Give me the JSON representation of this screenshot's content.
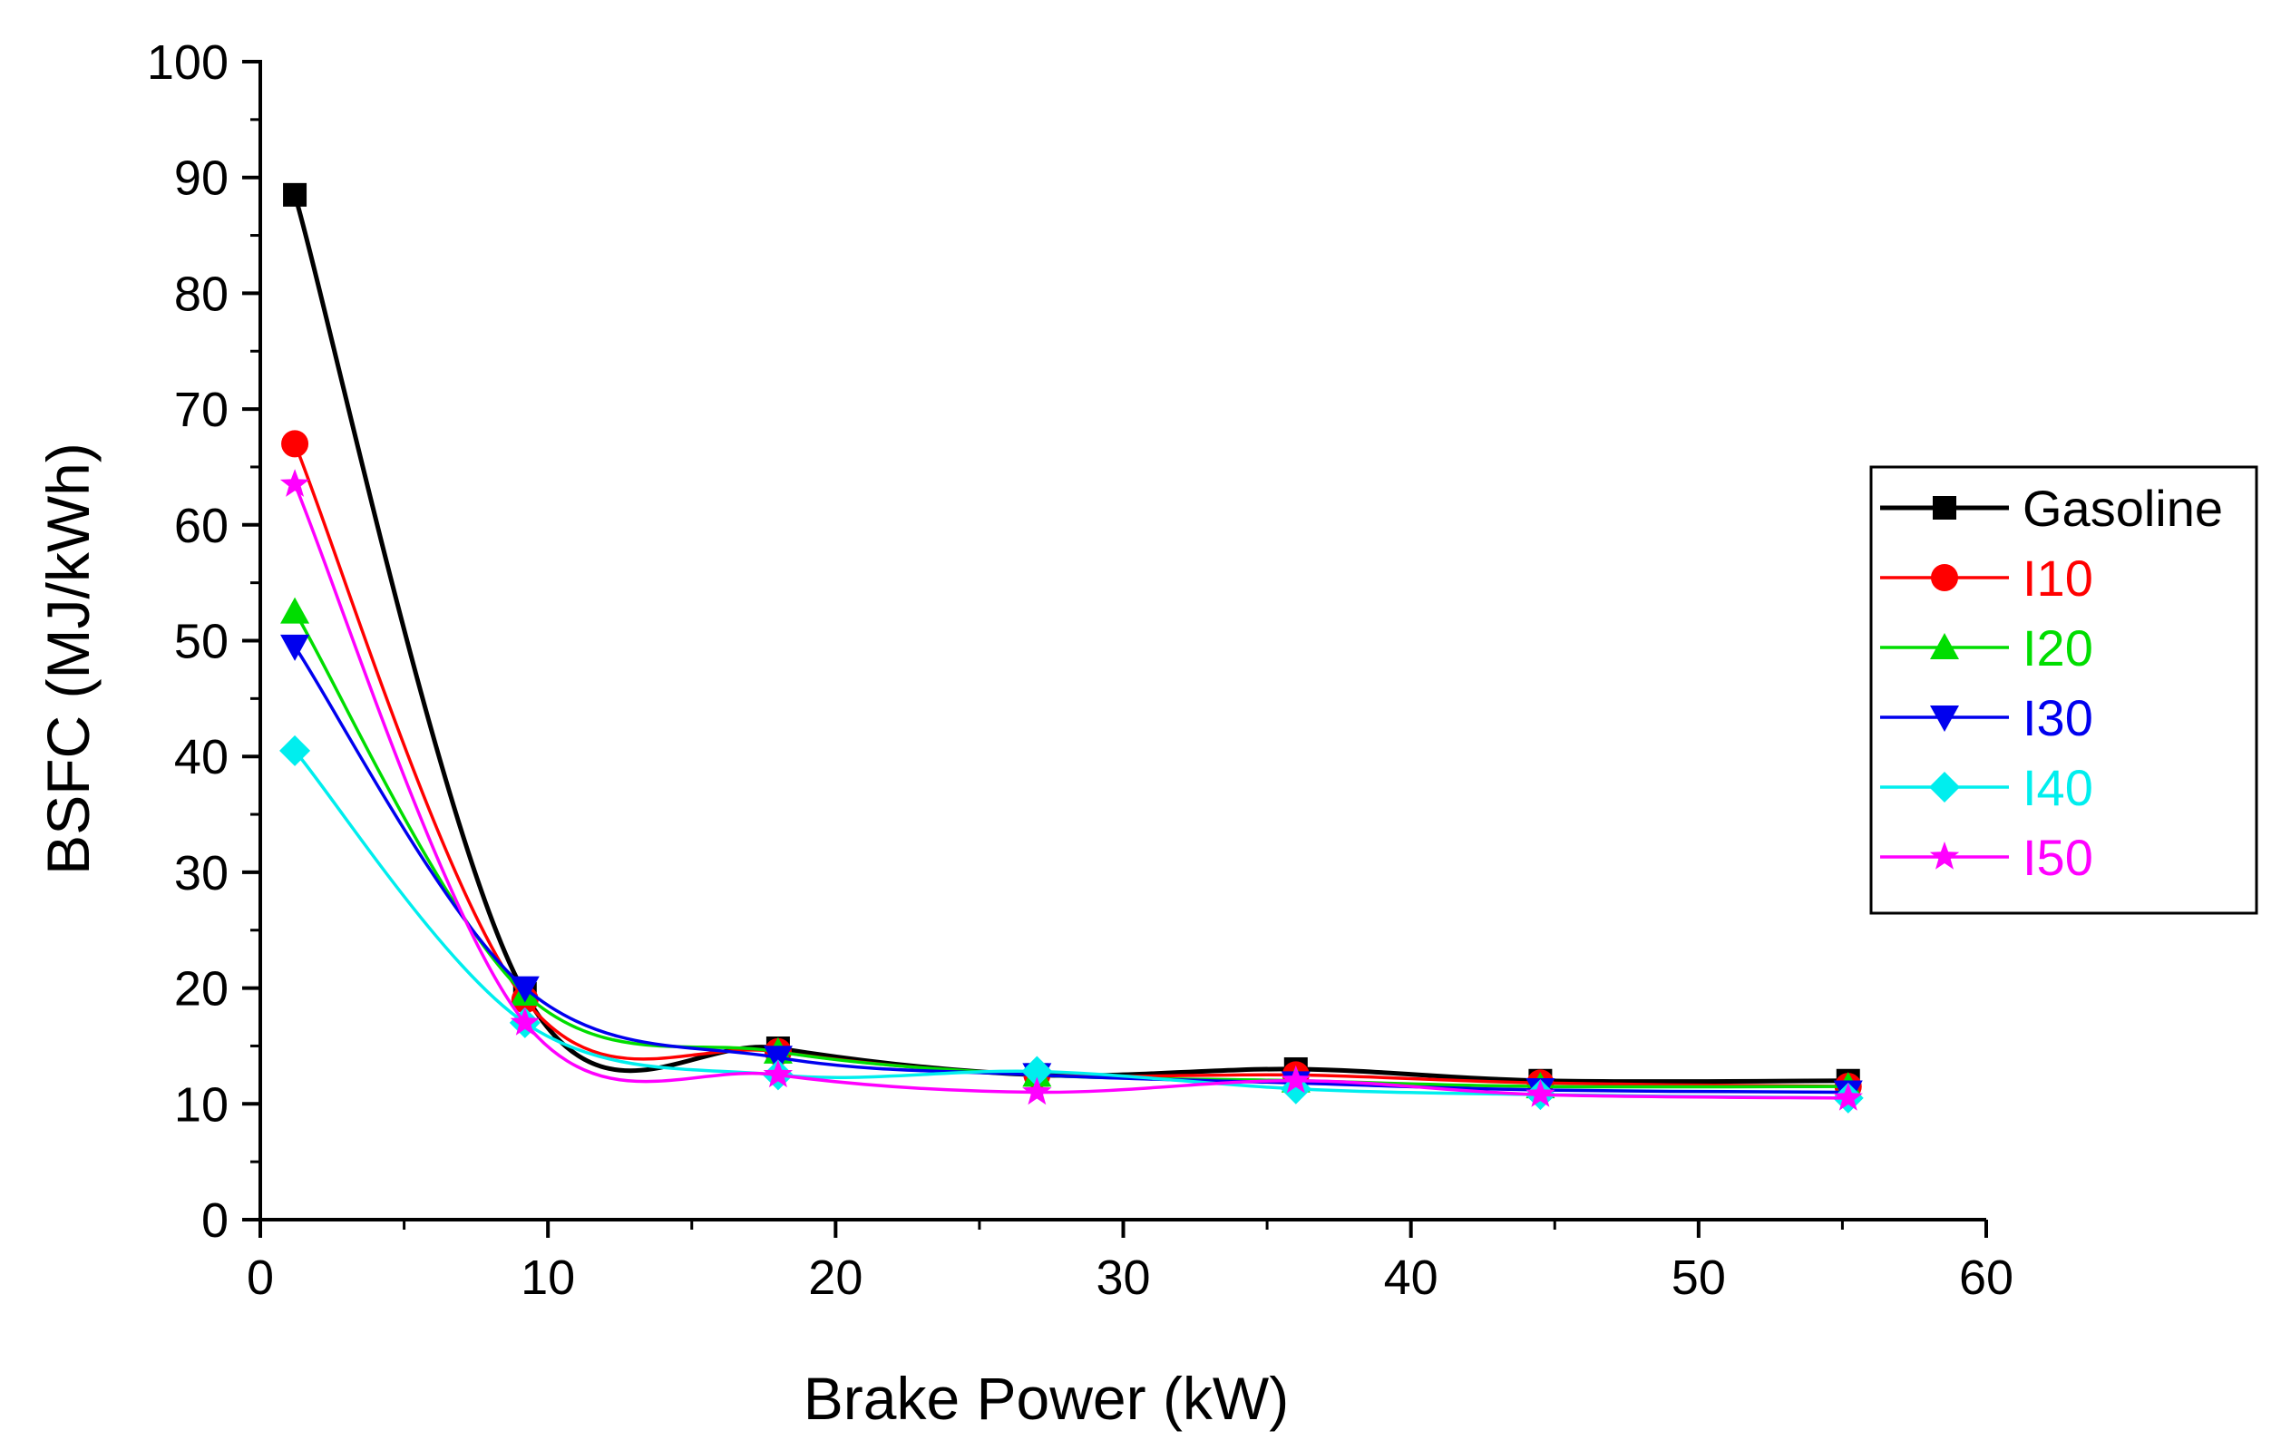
{
  "chart_data": {
    "type": "line",
    "title": "",
    "xlabel": "Brake Power (kW)",
    "ylabel": "BSFC (MJ/kWh)",
    "xlim": [
      0,
      60
    ],
    "ylim": [
      0,
      100
    ],
    "xticks": [
      0,
      10,
      20,
      30,
      40,
      50,
      60
    ],
    "yticks": [
      0,
      10,
      20,
      30,
      40,
      50,
      60,
      70,
      80,
      90,
      100
    ],
    "grid": false,
    "legend_position": "right",
    "x": [
      1.2,
      9.2,
      18.0,
      27.0,
      36.0,
      44.5,
      55.2
    ],
    "series": [
      {
        "name": "Gasoline",
        "color": "#000000",
        "marker": "square",
        "values": [
          88.5,
          19.5,
          14.8,
          12.5,
          13.0,
          12.0,
          12.0
        ]
      },
      {
        "name": "I10",
        "color": "#ff0000",
        "marker": "circle",
        "values": [
          67.0,
          19.0,
          14.5,
          12.5,
          12.5,
          11.8,
          11.5
        ]
      },
      {
        "name": "I20",
        "color": "#00dd00",
        "marker": "triangle-up",
        "values": [
          52.5,
          19.5,
          14.5,
          12.5,
          12.0,
          11.5,
          11.5
        ]
      },
      {
        "name": "I30",
        "color": "#0000ee",
        "marker": "triangle-down",
        "values": [
          49.5,
          20.0,
          14.0,
          12.5,
          11.8,
          11.2,
          11.0
        ]
      },
      {
        "name": "I40",
        "color": "#00eeee",
        "marker": "diamond",
        "values": [
          40.5,
          17.0,
          12.5,
          12.8,
          11.3,
          10.8,
          10.5
        ]
      },
      {
        "name": "I50",
        "color": "#ff00ff",
        "marker": "star",
        "values": [
          63.5,
          17.0,
          12.5,
          11.0,
          12.0,
          10.8,
          10.5
        ]
      }
    ]
  }
}
